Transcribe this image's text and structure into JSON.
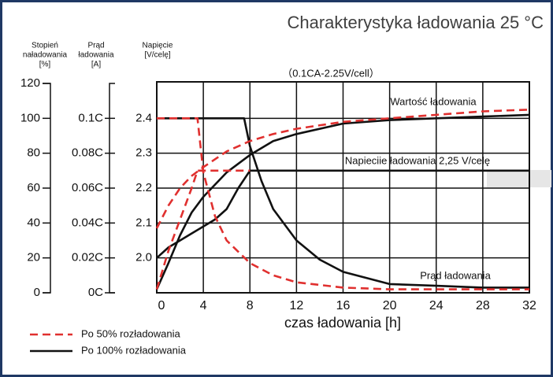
{
  "chart_data": {
    "type": "line",
    "title": "Charakterystyka ładowania 25 °C",
    "subtitle": "（0.1CA-2.25V/cell）",
    "xlabel": "czas ładowania [h]",
    "ylabel": [
      "Stopień",
      "naładowania",
      "[%]"
    ],
    "y2label": [
      "Prąd",
      "ładowania",
      "[A]"
    ],
    "y3label": [
      "Napięcie",
      "[V/celę]"
    ],
    "xlim": [
      0,
      32
    ],
    "xticks": [
      0,
      4,
      8,
      12,
      16,
      20,
      24,
      28,
      32
    ],
    "ylim": [
      0,
      120
    ],
    "yticks": [
      0,
      20,
      40,
      60,
      80,
      100,
      120
    ],
    "y2lim": [
      0,
      0.12
    ],
    "y2ticks": [
      {
        "value": 0,
        "label": "0C"
      },
      {
        "value": 0.02,
        "label": "0.02C"
      },
      {
        "value": 0.04,
        "label": "0.04C"
      },
      {
        "value": 0.06,
        "label": "0.06C"
      },
      {
        "value": 0.08,
        "label": "0.08C"
      },
      {
        "value": 0.1,
        "label": "0.1C"
      }
    ],
    "y3lim": [
      1.9,
      2.5
    ],
    "y3ticks": [
      {
        "value": 2,
        "label": "2.0"
      },
      2.1,
      2.2,
      2.3,
      2.4
    ],
    "grid": true,
    "annotations": [
      "Wartość ładowania",
      "Napieciie ładowania 2,25 V/celę",
      "Prąd ładowania"
    ],
    "series": [
      {
        "name": "Po 50% rozładowania",
        "color": "#e0302f",
        "dashed": true,
        "charge": {
          "axis": "y",
          "x": [
            0,
            1,
            2,
            3,
            4,
            6,
            8,
            10,
            12,
            16,
            20,
            24,
            28,
            32
          ],
          "values": [
            37,
            50,
            60,
            67,
            72,
            81,
            87,
            91,
            94,
            98,
            100,
            102,
            104,
            105
          ]
        },
        "voltage": {
          "axis": "y3",
          "x": [
            0,
            1,
            2,
            3,
            3.5,
            8
          ],
          "values": [
            1.91,
            2.02,
            2.11,
            2.2,
            2.25,
            2.25
          ]
        },
        "current": {
          "axis": "y2",
          "x": [
            0,
            3.5,
            4,
            5,
            6,
            8,
            10,
            12,
            16,
            20,
            24,
            28,
            32
          ],
          "values": [
            0.1,
            0.1,
            0.069,
            0.044,
            0.03,
            0.017,
            0.01,
            0.006,
            0.003,
            0.002,
            0.002,
            0.002,
            0.002
          ]
        }
      },
      {
        "name": "Po 100% rozładowania",
        "color": "#111111",
        "dashed": false,
        "charge": {
          "axis": "y",
          "x": [
            0,
            1,
            2,
            3,
            4,
            6,
            8,
            10,
            12,
            16,
            20,
            24,
            28,
            32
          ],
          "values": [
            2,
            17,
            33,
            46,
            55,
            69,
            79,
            87,
            91,
            97,
            99,
            100,
            101,
            102
          ]
        },
        "voltage": {
          "axis": "y3",
          "x": [
            0,
            1,
            2,
            3,
            4,
            5,
            6,
            7,
            8,
            32
          ],
          "values": [
            2.0,
            2.03,
            2.05,
            2.07,
            2.09,
            2.11,
            2.14,
            2.2,
            2.25,
            2.25
          ]
        },
        "current": {
          "axis": "y2",
          "x": [
            0,
            7.5,
            8,
            9,
            10,
            12,
            14,
            16,
            20,
            24,
            28,
            32
          ],
          "values": [
            0.1,
            0.1,
            0.084,
            0.064,
            0.048,
            0.03,
            0.019,
            0.012,
            0.005,
            0.004,
            0.003,
            0.003
          ]
        }
      }
    ]
  }
}
